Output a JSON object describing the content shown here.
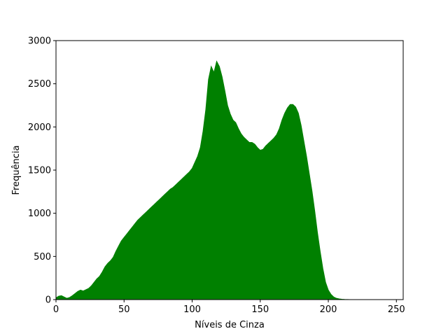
{
  "chart_data": {
    "type": "area",
    "title": "",
    "xlabel": "Níveis de Cinza",
    "ylabel": "Frequência",
    "xlim": [
      0,
      255
    ],
    "ylim": [
      0,
      3000
    ],
    "xticks": [
      0,
      50,
      100,
      150,
      200,
      250
    ],
    "yticks": [
      0,
      500,
      1000,
      1500,
      2000,
      2500,
      3000
    ],
    "grid": false,
    "legend": "none",
    "colors": {
      "fill": "#008000",
      "stroke": "#008000"
    },
    "series": [
      {
        "x": [
          0,
          2,
          4,
          6,
          8,
          10,
          12,
          14,
          16,
          18,
          20,
          22,
          24,
          26,
          28,
          30,
          32,
          34,
          36,
          38,
          40,
          42,
          44,
          46,
          48,
          50,
          52,
          54,
          56,
          58,
          60,
          62,
          64,
          66,
          68,
          70,
          72,
          74,
          76,
          78,
          80,
          82,
          84,
          86,
          88,
          90,
          92,
          94,
          96,
          98,
          100,
          102,
          104,
          106,
          108,
          110,
          112,
          114,
          116,
          118,
          120,
          122,
          124,
          126,
          128,
          130,
          132,
          134,
          136,
          138,
          140,
          142,
          144,
          146,
          148,
          150,
          152,
          154,
          156,
          158,
          160,
          162,
          164,
          166,
          168,
          170,
          172,
          174,
          176,
          178,
          180,
          182,
          184,
          186,
          188,
          190,
          192,
          194,
          196,
          198,
          200,
          202,
          204,
          206,
          208,
          210,
          212,
          214,
          216,
          218,
          220,
          225,
          230,
          235,
          240,
          245,
          250,
          255
        ],
        "y": [
          20,
          40,
          45,
          30,
          15,
          25,
          45,
          70,
          95,
          110,
          100,
          115,
          130,
          160,
          200,
          240,
          270,
          320,
          380,
          420,
          450,
          490,
          560,
          620,
          680,
          720,
          760,
          800,
          840,
          880,
          920,
          950,
          980,
          1010,
          1040,
          1070,
          1100,
          1130,
          1160,
          1190,
          1220,
          1250,
          1280,
          1300,
          1330,
          1360,
          1390,
          1420,
          1450,
          1480,
          1520,
          1590,
          1660,
          1760,
          1950,
          2200,
          2550,
          2700,
          2630,
          2760,
          2700,
          2580,
          2420,
          2250,
          2150,
          2080,
          2050,
          1980,
          1920,
          1880,
          1850,
          1820,
          1820,
          1800,
          1760,
          1730,
          1740,
          1780,
          1810,
          1840,
          1870,
          1910,
          1980,
          2080,
          2160,
          2220,
          2260,
          2260,
          2230,
          2160,
          2020,
          1840,
          1660,
          1460,
          1260,
          1030,
          780,
          560,
          360,
          200,
          110,
          60,
          30,
          15,
          8,
          4,
          2,
          1,
          0,
          0,
          0,
          0,
          0,
          0,
          0,
          0,
          0,
          0
        ]
      }
    ]
  }
}
